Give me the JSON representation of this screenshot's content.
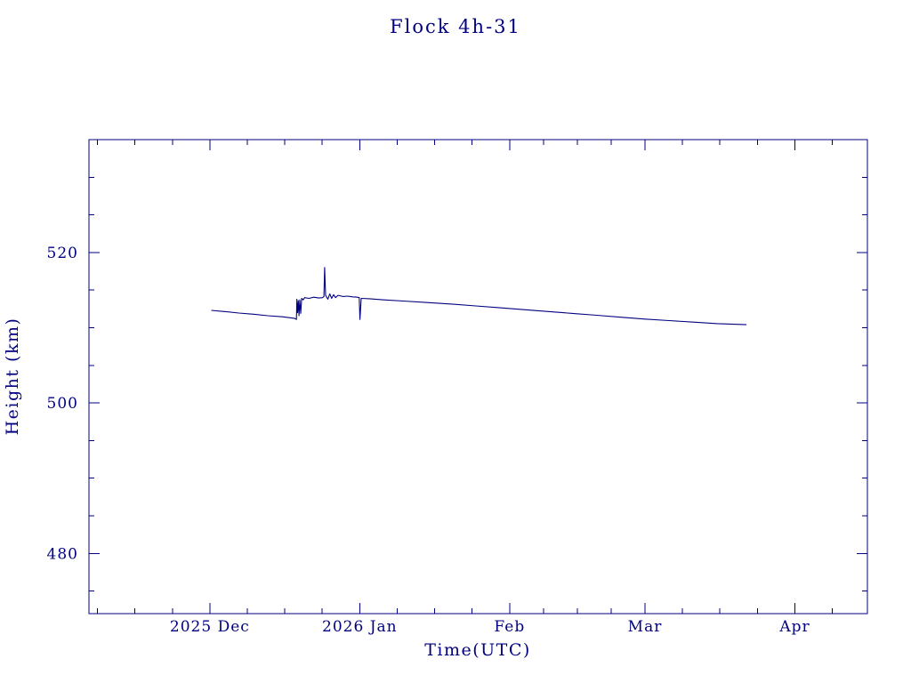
{
  "colors": {
    "accent": "#000080",
    "background": "#ffffff"
  },
  "chart_data": {
    "type": "line",
    "title": "Flock 4h-31",
    "xlabel": "Time(UTC)",
    "ylabel": "Height (km)",
    "x_unit": "days since 2025-12-01",
    "xlim": [
      -25,
      136
    ],
    "ylim": [
      472,
      535
    ],
    "grid": false,
    "legend": null,
    "x_ticks": [
      {
        "day": 0,
        "label": "2025 Dec"
      },
      {
        "day": 31,
        "label": "2026 Jan"
      },
      {
        "day": 62,
        "label": "Feb"
      },
      {
        "day": 90,
        "label": "Mar"
      },
      {
        "day": 121,
        "label": "Apr"
      }
    ],
    "y_ticks": [
      {
        "value": 480,
        "label": "480"
      },
      {
        "value": 500,
        "label": "500"
      },
      {
        "value": 520,
        "label": "520"
      }
    ],
    "y_minor_step": 5,
    "series": [
      {
        "name": "height",
        "color": "#000080",
        "points": [
          [
            0.3,
            512.3
          ],
          [
            3,
            512.15
          ],
          [
            6,
            511.95
          ],
          [
            9,
            511.8
          ],
          [
            12,
            511.6
          ],
          [
            15,
            511.45
          ],
          [
            17.5,
            511.25
          ],
          [
            17.9,
            511.1
          ],
          [
            18.0,
            513.8
          ],
          [
            18.15,
            512.0
          ],
          [
            18.3,
            513.6
          ],
          [
            18.45,
            511.6
          ],
          [
            18.6,
            513.7
          ],
          [
            18.8,
            511.9
          ],
          [
            19.0,
            513.9
          ],
          [
            19.3,
            513.7
          ],
          [
            19.6,
            514.0
          ],
          [
            20.5,
            513.9
          ],
          [
            21.5,
            514.05
          ],
          [
            22.5,
            513.95
          ],
          [
            23.3,
            514.0
          ],
          [
            23.6,
            514.15
          ],
          [
            23.75,
            518.0
          ],
          [
            23.95,
            514.3
          ],
          [
            24.4,
            513.8
          ],
          [
            24.8,
            514.5
          ],
          [
            25.2,
            513.9
          ],
          [
            25.6,
            514.4
          ],
          [
            26.0,
            514.0
          ],
          [
            26.5,
            514.3
          ],
          [
            27.5,
            514.15
          ],
          [
            28.5,
            514.2
          ],
          [
            29.5,
            514.1
          ],
          [
            30.5,
            514.05
          ],
          [
            30.9,
            514.0
          ],
          [
            31.05,
            511.1
          ],
          [
            31.3,
            513.9
          ],
          [
            33,
            513.85
          ],
          [
            36,
            513.7
          ],
          [
            40,
            513.55
          ],
          [
            45,
            513.35
          ],
          [
            50,
            513.15
          ],
          [
            55,
            512.9
          ],
          [
            60,
            512.65
          ],
          [
            65,
            512.4
          ],
          [
            70,
            512.15
          ],
          [
            75,
            511.9
          ],
          [
            80,
            511.65
          ],
          [
            85,
            511.4
          ],
          [
            90,
            511.15
          ],
          [
            95,
            510.95
          ],
          [
            100,
            510.75
          ],
          [
            105,
            510.55
          ],
          [
            109,
            510.45
          ],
          [
            111,
            510.4
          ]
        ]
      }
    ]
  }
}
